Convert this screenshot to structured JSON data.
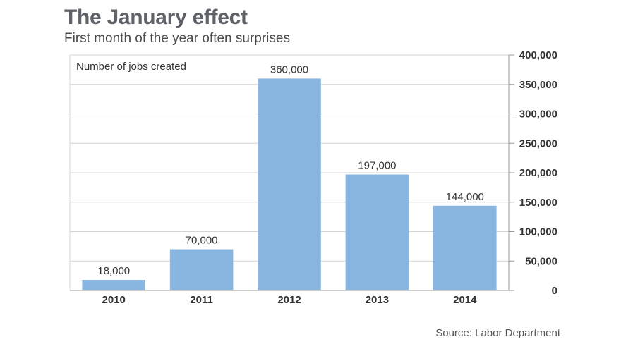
{
  "chart_data": {
    "type": "bar",
    "title": "The January effect",
    "subtitle": "First month of the year often surprises",
    "ylabel": "Number of jobs created",
    "xlabel": "",
    "categories": [
      "2010",
      "2011",
      "2012",
      "2013",
      "2014"
    ],
    "values": [
      18000,
      70000,
      360000,
      197000,
      144000
    ],
    "value_labels": [
      "18,000",
      "70,000",
      "360,000",
      "197,000",
      "144,000"
    ],
    "ylim": [
      0,
      400000
    ],
    "yticks": [
      0,
      50000,
      100000,
      150000,
      200000,
      250000,
      300000,
      350000,
      400000
    ],
    "ytick_labels": [
      "0",
      "50,000",
      "100,000",
      "150,000",
      "200,000",
      "250,000",
      "300,000",
      "350,000",
      "400,000"
    ],
    "y_axis_side": "right",
    "grid": true,
    "bar_color": "#89b6e1",
    "source": "Source: Labor Department"
  }
}
